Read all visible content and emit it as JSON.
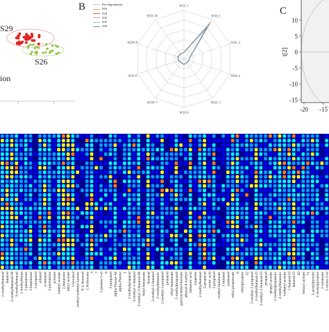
{
  "panels": {
    "a": {
      "cluster_labels": [
        "S29",
        "S26"
      ],
      "partial_text": "ion"
    },
    "b": {
      "letter": "B",
      "legend": [
        "Pre-degradation",
        "S26",
        "S29",
        "S32",
        "S35",
        "S38"
      ],
      "legend_colors": [
        "#b7c7d6",
        "#e0b24a",
        "#d9534f",
        "#b0b0b0",
        "#7ec8e3",
        "#6a8fb0"
      ],
      "axes": [
        "W1C 1",
        "W5S 2",
        "W3C 3",
        "W6S 4",
        "W5C 5",
        "W1S 6",
        "W1W 7",
        "W2S 8",
        "W2W 9",
        "W3S 10"
      ]
    },
    "c": {
      "letter": "C",
      "ylabel": "t[2]",
      "yticks": [
        "10",
        "5",
        "0",
        "-5",
        "-10",
        "-15"
      ],
      "xticks": [
        "-20",
        "-15"
      ]
    }
  },
  "chart_data": {
    "type": "heatmap",
    "colorscale": [
      "#00008f",
      "#0000ff",
      "#00a0ff",
      "#00ffff",
      "#ffff00",
      "#ff8000",
      "#ff0000"
    ],
    "x_labels": [
      "2-methylbutanal",
      "butanal",
      "2-methylbutanal-M",
      "3-methylbutanal",
      "2-methylfuran",
      "2-pentanone",
      "2-heptanone",
      "1-propanol",
      "ethanol",
      "n-butanol",
      "3-pentanone",
      "acetone",
      "methyl acetate",
      "2-butanone",
      "ethyl acetate",
      "1-hexanol",
      "methyl isobutyl ketone",
      "E-2-hexenal",
      "1,4-dioxane",
      "3",
      "7",
      "1-penten-3-ol",
      "8",
      "2-propanol",
      "alpha-Pinene-M",
      "alpha-Pinene",
      "1",
      "2-methylpropanal",
      "3-methyl-1-butanol",
      "3-methyl-1-butanol-M",
      "butyl butanoate",
      "hexanal",
      "2-methyl-1-butanol",
      "2-methylbutanoic",
      "2-methyl-1-propanol",
      "pentanal",
      "ethyl butanoate",
      "2-methylpropanol",
      "gamma-butyrolactone",
      "phenol-4-methyl",
      "butanoic acid",
      "isoprene",
      "2-methylbutanol",
      "2-propenal",
      "acetic acid",
      "1-propanol",
      "methyl butanoate",
      "1-butanol",
      "methanol",
      "ethyl propanoate",
      "6",
      "ethylpyrazine",
      "32",
      "2-methyl-1-propanol",
      "2-methylbutanal-D",
      "2-methyl-1-butanol-D",
      "propanal",
      "propyl acetate",
      "2-methylpropanoic",
      "3-methylbutanoic",
      "isobutyl acetate",
      "1-butanol-D",
      "butanal-D",
      "43",
      "benzyl acetate",
      "71",
      "2-acetylpyrrole",
      "2-acetylpyrazine",
      "2-octanone",
      "1-octen-3-ol"
    ],
    "rows": 30
  }
}
